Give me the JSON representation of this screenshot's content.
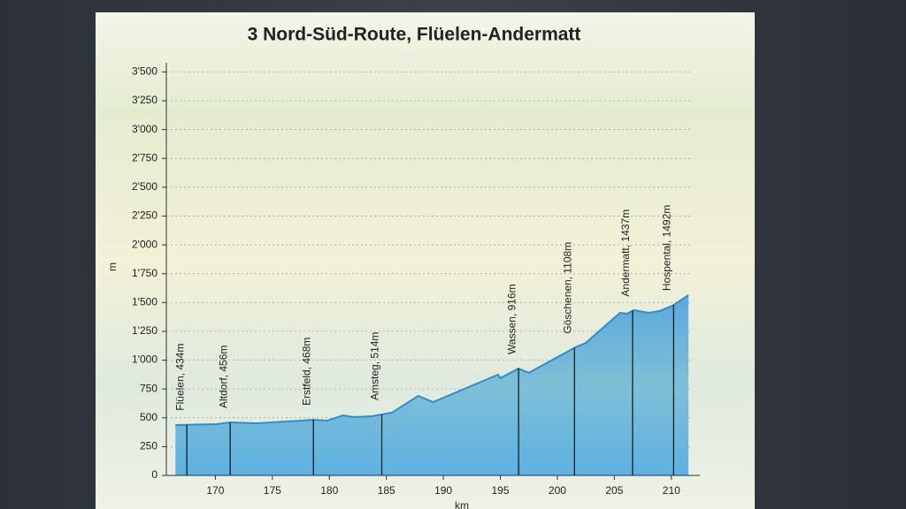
{
  "chart_data": {
    "type": "area",
    "title": "3 Nord-Süd-Route, Flüelen-Andermatt",
    "y_label": "m",
    "x_label": "km",
    "color": "#2a8fd0",
    "grid": true,
    "x": [
      166.5,
      170.1,
      171.3,
      173.6,
      177.5,
      178.6,
      179.8,
      181.2,
      182.1,
      183.7,
      184.6,
      185.5,
      187.8,
      189.1,
      194.8,
      195.0,
      196.6,
      197.5,
      201.6,
      202.5,
      205.5,
      206.1,
      206.7,
      208.0,
      209.0,
      210.1,
      211.5
    ],
    "values": [
      437,
      445,
      460,
      452,
      475,
      483,
      475,
      521,
      506,
      514,
      529,
      545,
      690,
      636,
      874,
      844,
      928,
      890,
      1112,
      1150,
      1411,
      1403,
      1434,
      1411,
      1427,
      1472,
      1564
    ],
    "xlim": [
      165.7,
      212.5
    ],
    "ylim": [
      0,
      3580
    ],
    "xticks": [
      170,
      175,
      180,
      185,
      190,
      195,
      200,
      205,
      210
    ],
    "yticks": [
      0,
      250,
      500,
      750,
      {
        "value": 1000,
        "label": "1'000"
      },
      {
        "value": 1250,
        "label": "1'250"
      },
      {
        "value": 1500,
        "label": "1'500"
      },
      {
        "value": 1750,
        "label": "1'750"
      },
      {
        "value": 2000,
        "label": "2'000"
      },
      {
        "value": 2250,
        "label": "2'250"
      },
      {
        "value": 2500,
        "label": "2'500"
      },
      {
        "value": 2750,
        "label": "2'750"
      },
      {
        "value": 3000,
        "label": "3'000"
      },
      {
        "value": 3250,
        "label": "3'250"
      },
      {
        "value": 3500,
        "label": "3'500"
      }
    ],
    "markers": [
      {
        "label": "Flüelen, 434m",
        "x": 167.5
      },
      {
        "label": "Altdorf, 456m",
        "x": 171.3
      },
      {
        "label": "Erstfeld, 468m",
        "x": 178.6
      },
      {
        "label": "Amsteg, 514m",
        "x": 184.6
      },
      {
        "label": "Wassen, 916m",
        "x": 196.6
      },
      {
        "label": "Göschenen, 1108m",
        "x": 201.5
      },
      {
        "label": "Andermatt, 1437m",
        "x": 206.6
      },
      {
        "label": "Hospental, 1492m",
        "x": 210.2
      }
    ]
  }
}
